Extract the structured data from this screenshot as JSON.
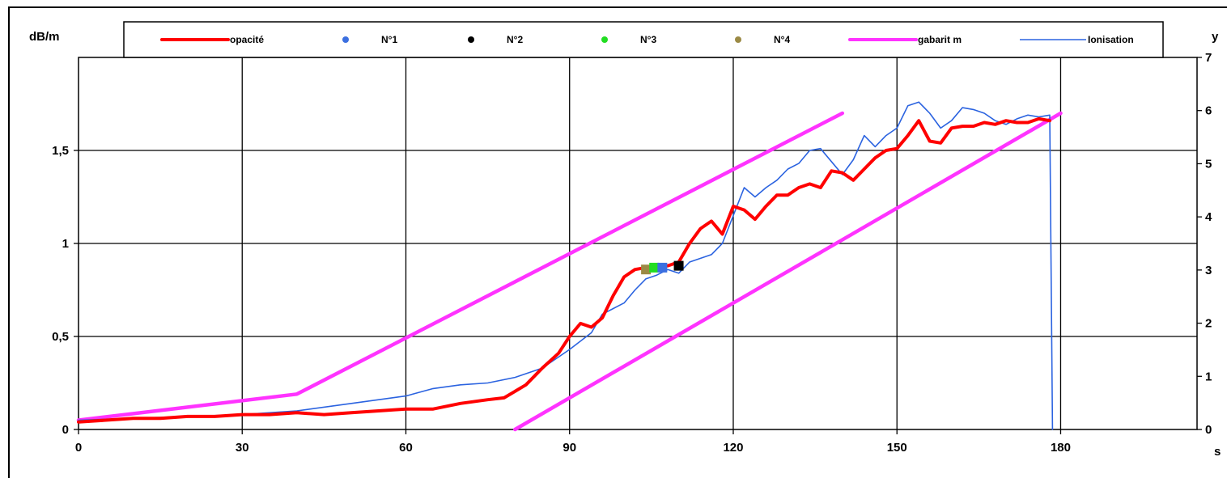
{
  "chart_data": {
    "type": "line",
    "left_unit": "dB/m",
    "right_unit": "y",
    "x_unit": "s",
    "x_ticks": [
      "0",
      "30",
      "60",
      "90",
      "120",
      "150",
      "180"
    ],
    "y_left_ticks": [
      "0",
      "0,5",
      "1",
      "1,5"
    ],
    "y_right_ticks": [
      "0",
      "1",
      "2",
      "3",
      "4",
      "5",
      "6",
      "7"
    ],
    "xlim": [
      0,
      205
    ],
    "ylim_left": [
      0,
      2.0
    ],
    "ylim_right": [
      0,
      7
    ],
    "grid": true,
    "legend_position": "top",
    "legend": [
      {
        "label": "opacité",
        "kind": "line",
        "color": "#ff0000"
      },
      {
        "label": "N°1",
        "kind": "marker",
        "color": "#3b6fe0"
      },
      {
        "label": "N°2",
        "kind": "marker",
        "color": "#000000"
      },
      {
        "label": "N°3",
        "kind": "marker",
        "color": "#22dd22"
      },
      {
        "label": "N°4",
        "kind": "marker",
        "color": "#9b8a45"
      },
      {
        "label": "gabarit m",
        "kind": "line",
        "color": "#ff33ff"
      },
      {
        "label": "Ionisation",
        "kind": "thinline",
        "color": "#2b63e0"
      }
    ],
    "series": [
      {
        "name": "opacité",
        "axis": "left",
        "color": "#ff0000",
        "points": [
          [
            0,
            0.04
          ],
          [
            5,
            0.05
          ],
          [
            10,
            0.06
          ],
          [
            15,
            0.06
          ],
          [
            20,
            0.07
          ],
          [
            25,
            0.07
          ],
          [
            30,
            0.08
          ],
          [
            35,
            0.08
          ],
          [
            40,
            0.09
          ],
          [
            45,
            0.08
          ],
          [
            50,
            0.09
          ],
          [
            55,
            0.1
          ],
          [
            60,
            0.11
          ],
          [
            65,
            0.11
          ],
          [
            70,
            0.14
          ],
          [
            75,
            0.16
          ],
          [
            78,
            0.17
          ],
          [
            82,
            0.24
          ],
          [
            85,
            0.33
          ],
          [
            88,
            0.41
          ],
          [
            90,
            0.5
          ],
          [
            92,
            0.57
          ],
          [
            94,
            0.55
          ],
          [
            96,
            0.6
          ],
          [
            98,
            0.72
          ],
          [
            100,
            0.82
          ],
          [
            102,
            0.86
          ],
          [
            104,
            0.87
          ],
          [
            106,
            0.88
          ],
          [
            108,
            0.88
          ],
          [
            110,
            0.9
          ],
          [
            112,
            1.0
          ],
          [
            114,
            1.08
          ],
          [
            116,
            1.12
          ],
          [
            118,
            1.05
          ],
          [
            120,
            1.2
          ],
          [
            122,
            1.18
          ],
          [
            124,
            1.13
          ],
          [
            126,
            1.2
          ],
          [
            128,
            1.26
          ],
          [
            130,
            1.26
          ],
          [
            132,
            1.3
          ],
          [
            134,
            1.32
          ],
          [
            136,
            1.3
          ],
          [
            138,
            1.39
          ],
          [
            140,
            1.38
          ],
          [
            142,
            1.34
          ],
          [
            144,
            1.4
          ],
          [
            146,
            1.46
          ],
          [
            148,
            1.5
          ],
          [
            150,
            1.51
          ],
          [
            152,
            1.58
          ],
          [
            154,
            1.66
          ],
          [
            156,
            1.55
          ],
          [
            158,
            1.54
          ],
          [
            160,
            1.62
          ],
          [
            162,
            1.63
          ],
          [
            164,
            1.63
          ],
          [
            166,
            1.65
          ],
          [
            168,
            1.64
          ],
          [
            170,
            1.66
          ],
          [
            172,
            1.65
          ],
          [
            174,
            1.65
          ],
          [
            176,
            1.67
          ],
          [
            178,
            1.66
          ]
        ]
      },
      {
        "name": "Ionisation",
        "axis": "left",
        "color": "#2b63e0",
        "points": [
          [
            0,
            0.05
          ],
          [
            10,
            0.06
          ],
          [
            20,
            0.07
          ],
          [
            30,
            0.08
          ],
          [
            40,
            0.1
          ],
          [
            50,
            0.14
          ],
          [
            60,
            0.18
          ],
          [
            65,
            0.22
          ],
          [
            70,
            0.24
          ],
          [
            75,
            0.25
          ],
          [
            80,
            0.28
          ],
          [
            85,
            0.33
          ],
          [
            90,
            0.43
          ],
          [
            94,
            0.52
          ],
          [
            96,
            0.62
          ],
          [
            98,
            0.65
          ],
          [
            100,
            0.68
          ],
          [
            102,
            0.75
          ],
          [
            104,
            0.81
          ],
          [
            106,
            0.83
          ],
          [
            108,
            0.86
          ],
          [
            110,
            0.84
          ],
          [
            112,
            0.9
          ],
          [
            114,
            0.92
          ],
          [
            116,
            0.94
          ],
          [
            118,
            1.0
          ],
          [
            120,
            1.15
          ],
          [
            122,
            1.3
          ],
          [
            124,
            1.25
          ],
          [
            126,
            1.3
          ],
          [
            128,
            1.34
          ],
          [
            130,
            1.4
          ],
          [
            132,
            1.43
          ],
          [
            134,
            1.5
          ],
          [
            136,
            1.51
          ],
          [
            138,
            1.44
          ],
          [
            140,
            1.37
          ],
          [
            142,
            1.45
          ],
          [
            144,
            1.58
          ],
          [
            146,
            1.52
          ],
          [
            148,
            1.58
          ],
          [
            150,
            1.62
          ],
          [
            152,
            1.74
          ],
          [
            154,
            1.76
          ],
          [
            156,
            1.7
          ],
          [
            158,
            1.62
          ],
          [
            160,
            1.66
          ],
          [
            162,
            1.73
          ],
          [
            164,
            1.72
          ],
          [
            166,
            1.7
          ],
          [
            168,
            1.66
          ],
          [
            170,
            1.64
          ],
          [
            172,
            1.67
          ],
          [
            174,
            1.69
          ],
          [
            176,
            1.68
          ],
          [
            178,
            1.69
          ],
          [
            178.5,
            0.0
          ]
        ]
      },
      {
        "name": "gabarit m",
        "axis": "left",
        "color": "#ff33ff",
        "segment": 1,
        "points": [
          [
            0,
            0.05
          ],
          [
            40,
            0.19
          ],
          [
            140,
            1.7
          ]
        ]
      },
      {
        "name": "gabarit m",
        "axis": "left",
        "color": "#ff33ff",
        "segment": 2,
        "points": [
          [
            80,
            0.0
          ],
          [
            180,
            1.7
          ]
        ]
      }
    ],
    "markers": [
      {
        "name": "N°4",
        "x": 104,
        "y": 0.86,
        "color": "#9b8a45"
      },
      {
        "name": "N°3",
        "x": 105.5,
        "y": 0.87,
        "color": "#22dd22"
      },
      {
        "name": "N°1",
        "x": 107,
        "y": 0.87,
        "color": "#3b6fe0"
      },
      {
        "name": "N°2",
        "x": 110,
        "y": 0.88,
        "color": "#000000"
      }
    ]
  }
}
